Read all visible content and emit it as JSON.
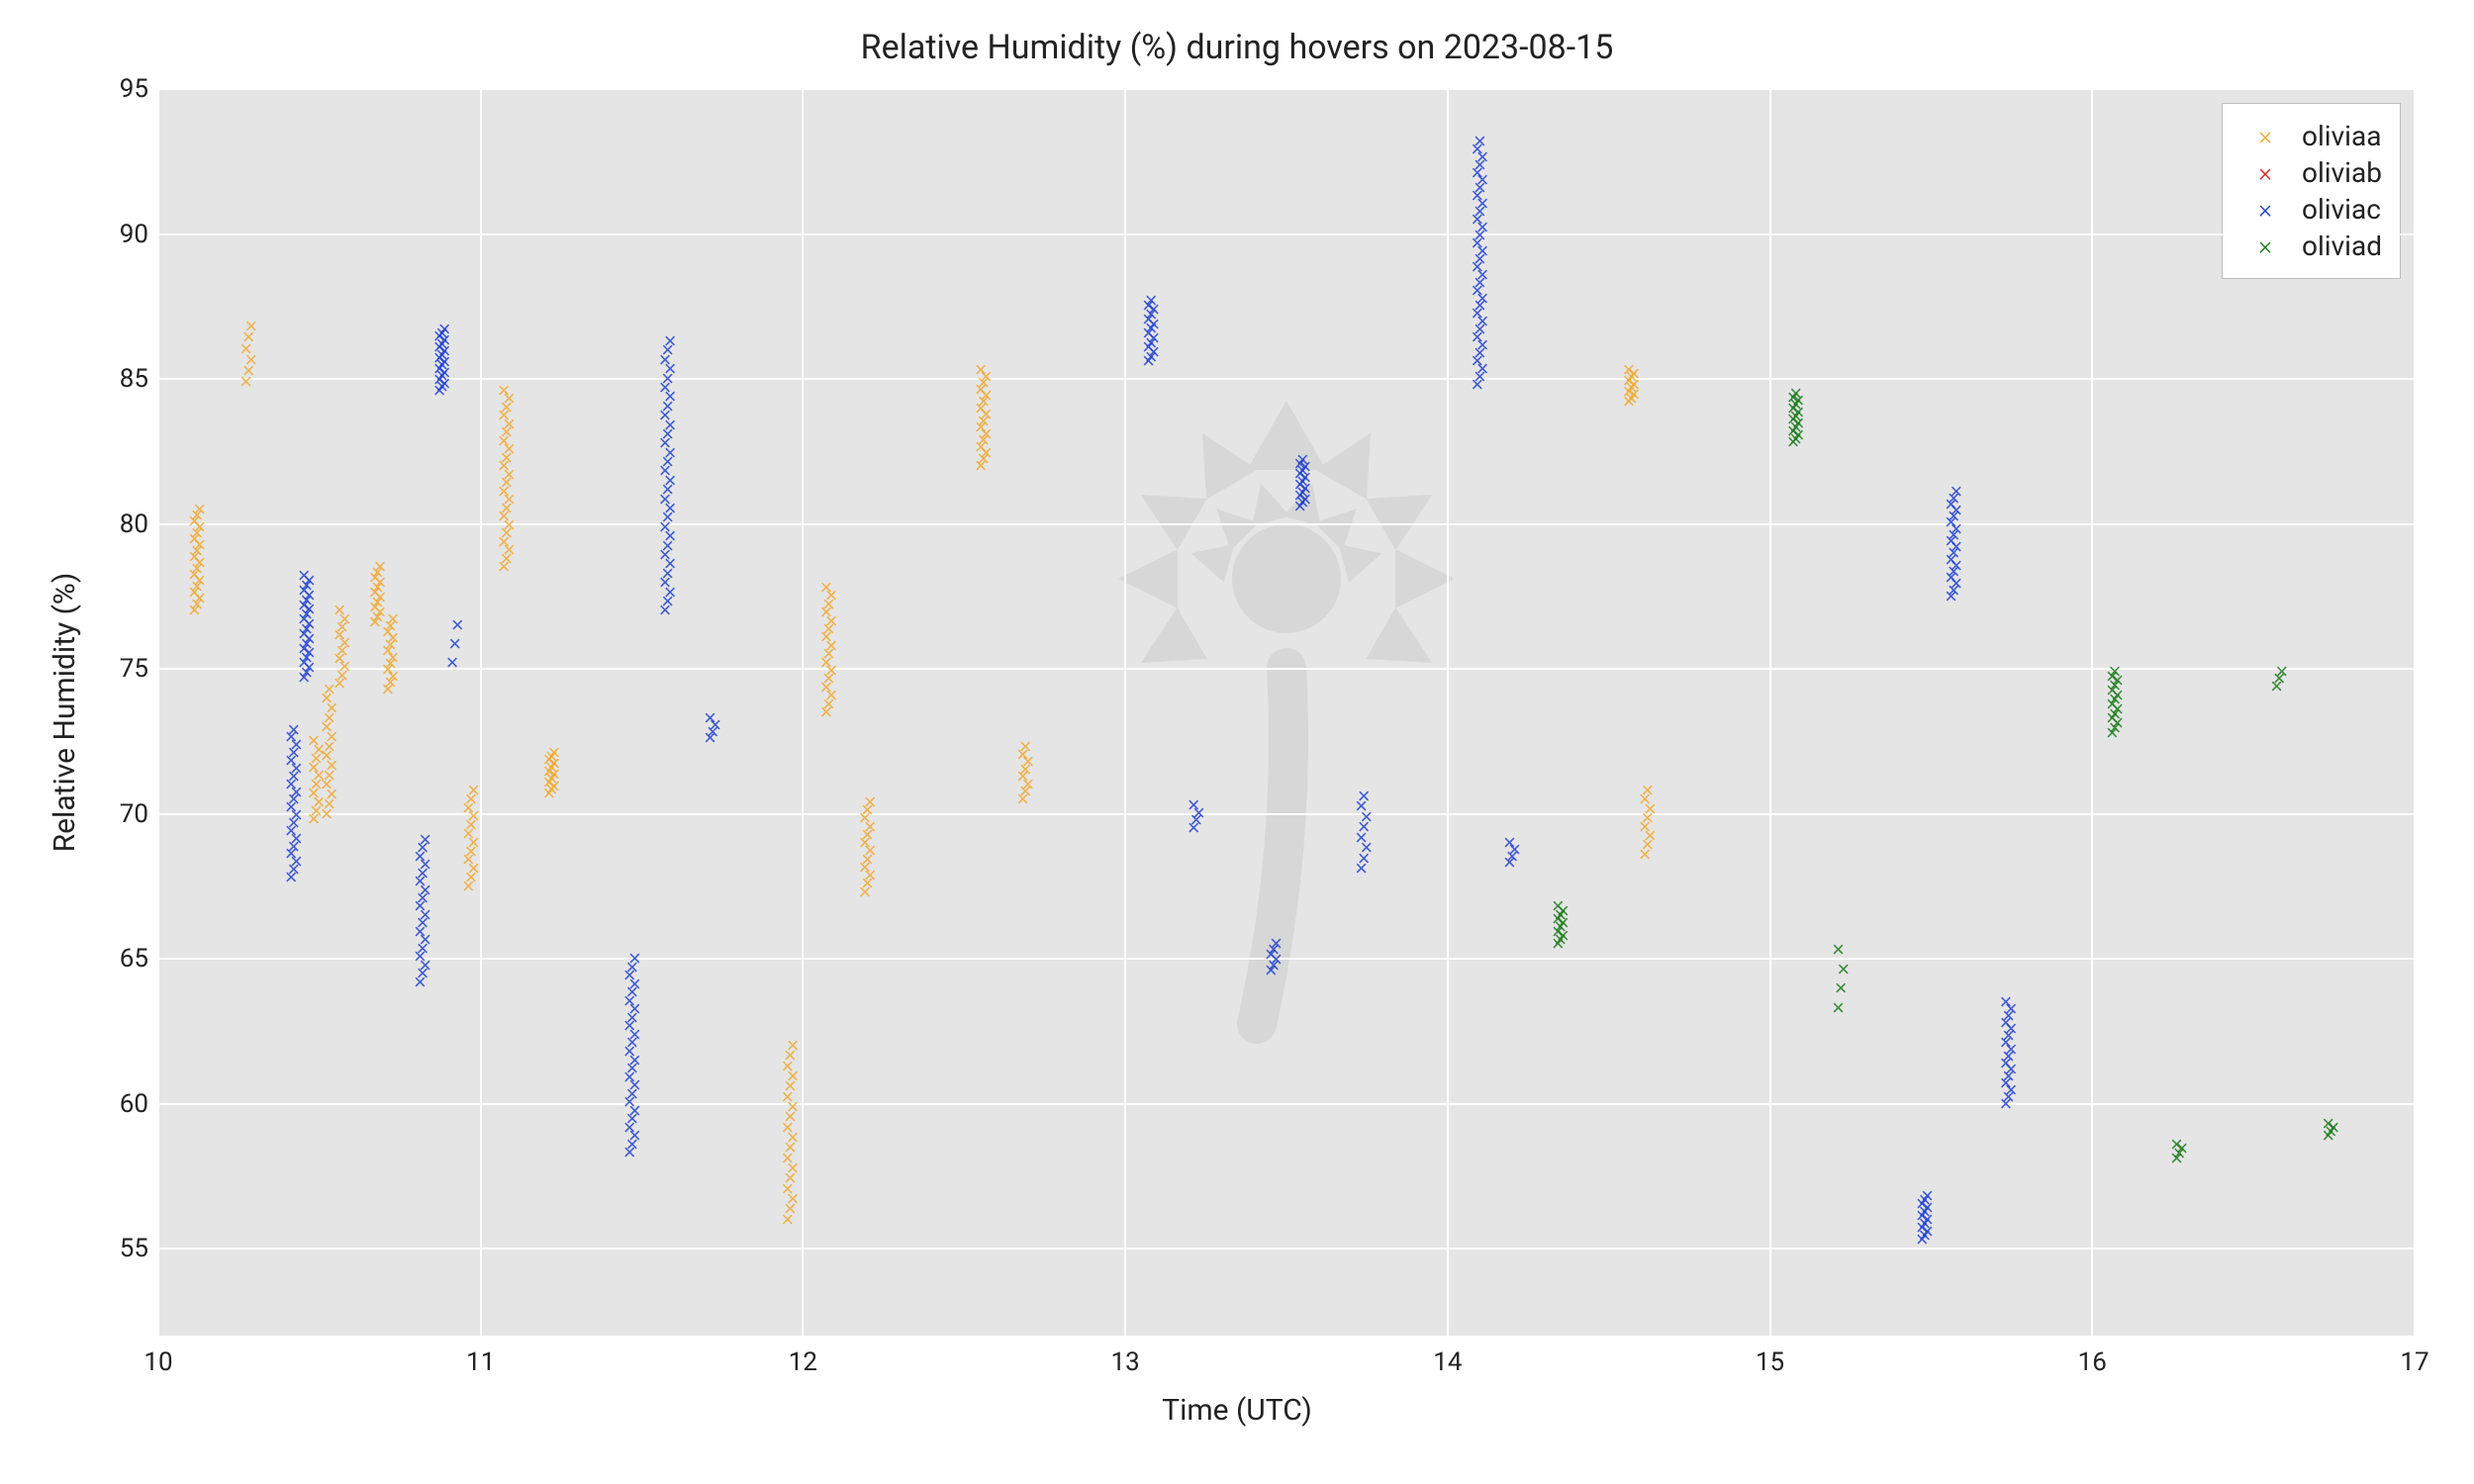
{
  "chart": {
    "type": "scatter",
    "title": "Relative Humidity (%) during hovers on 2023-08-15",
    "title_fontsize": 34,
    "xlabel": "Time (UTC)",
    "ylabel": "Relative Humidity (%)",
    "label_fontsize": 30,
    "tick_fontsize": 26,
    "background_color": "#ffffff",
    "plot_bg_color": "#e5e5e5",
    "grid_color": "#ffffff",
    "text_color": "#222222",
    "xlim": [
      10,
      17
    ],
    "ylim": [
      52,
      95
    ],
    "xticks": [
      10,
      11,
      12,
      13,
      14,
      15,
      16,
      17
    ],
    "yticks": [
      55,
      60,
      65,
      70,
      75,
      80,
      85,
      90,
      95
    ],
    "marker_symbol": "×",
    "marker_fontsize": 22,
    "legend": {
      "position": "upper-right",
      "items": [
        "oliviaa",
        "oliviab",
        "oliviac",
        "oliviad"
      ],
      "border_color": "#bcbcbc",
      "bg_color": "#ffffff",
      "fontsize": 28
    },
    "series_colors": {
      "oliviaa": "#f0a930",
      "oliviab": "#d62728",
      "oliviac": "#2040d0",
      "oliviad": "#1a7a1a"
    },
    "clusters": [
      {
        "series": "oliviaa",
        "x": 10.12,
        "ymin": 77.0,
        "ymax": 80.5,
        "n": 18
      },
      {
        "series": "oliviaa",
        "x": 10.28,
        "ymin": 84.9,
        "ymax": 86.8,
        "n": 6
      },
      {
        "series": "oliviac",
        "x": 10.42,
        "ymin": 67.8,
        "ymax": 72.9,
        "n": 20
      },
      {
        "series": "oliviac",
        "x": 10.46,
        "ymin": 74.7,
        "ymax": 78.2,
        "n": 22
      },
      {
        "series": "oliviaa",
        "x": 10.49,
        "ymin": 69.8,
        "ymax": 72.5,
        "n": 10
      },
      {
        "series": "oliviaa",
        "x": 10.53,
        "ymin": 70.0,
        "ymax": 74.3,
        "n": 14
      },
      {
        "series": "oliviaa",
        "x": 10.57,
        "ymin": 74.5,
        "ymax": 77.0,
        "n": 10
      },
      {
        "series": "oliviaa",
        "x": 10.68,
        "ymin": 76.6,
        "ymax": 78.5,
        "n": 12
      },
      {
        "series": "oliviaa",
        "x": 10.72,
        "ymin": 74.3,
        "ymax": 76.7,
        "n": 12
      },
      {
        "series": "oliviac",
        "x": 10.82,
        "ymin": 64.2,
        "ymax": 69.1,
        "n": 18
      },
      {
        "series": "oliviac",
        "x": 10.88,
        "ymin": 84.6,
        "ymax": 86.7,
        "n": 18
      },
      {
        "series": "oliviac",
        "x": 10.92,
        "ymin": 75.2,
        "ymax": 76.5,
        "n": 3
      },
      {
        "series": "oliviaa",
        "x": 10.97,
        "ymin": 67.5,
        "ymax": 70.8,
        "n": 12
      },
      {
        "series": "oliviaa",
        "x": 11.08,
        "ymin": 78.5,
        "ymax": 84.6,
        "n": 22
      },
      {
        "series": "oliviaa",
        "x": 11.22,
        "ymin": 70.7,
        "ymax": 72.1,
        "n": 12
      },
      {
        "series": "oliviac",
        "x": 11.47,
        "ymin": 58.3,
        "ymax": 65.0,
        "n": 24
      },
      {
        "series": "oliviac",
        "x": 11.58,
        "ymin": 77.0,
        "ymax": 86.3,
        "n": 30
      },
      {
        "series": "oliviac",
        "x": 11.72,
        "ymin": 72.6,
        "ymax": 73.3,
        "n": 4
      },
      {
        "series": "oliviaa",
        "x": 11.96,
        "ymin": 56.0,
        "ymax": 62.0,
        "n": 18
      },
      {
        "series": "oliviaa",
        "x": 12.08,
        "ymin": 73.5,
        "ymax": 77.8,
        "n": 16
      },
      {
        "series": "oliviaa",
        "x": 12.2,
        "ymin": 67.3,
        "ymax": 70.4,
        "n": 12
      },
      {
        "series": "oliviaa",
        "x": 12.56,
        "ymin": 82.0,
        "ymax": 85.3,
        "n": 16
      },
      {
        "series": "oliviaa",
        "x": 12.69,
        "ymin": 70.5,
        "ymax": 72.3,
        "n": 8
      },
      {
        "series": "oliviac",
        "x": 13.08,
        "ymin": 85.6,
        "ymax": 87.7,
        "n": 14
      },
      {
        "series": "oliviac",
        "x": 13.22,
        "ymin": 69.5,
        "ymax": 70.3,
        "n": 4
      },
      {
        "series": "oliviac",
        "x": 13.46,
        "ymin": 64.6,
        "ymax": 65.5,
        "n": 6
      },
      {
        "series": "oliviac",
        "x": 13.55,
        "ymin": 80.6,
        "ymax": 82.2,
        "n": 14
      },
      {
        "series": "oliviac",
        "x": 13.74,
        "ymin": 68.1,
        "ymax": 70.6,
        "n": 8
      },
      {
        "series": "oliviac",
        "x": 14.1,
        "ymin": 84.8,
        "ymax": 93.2,
        "n": 32
      },
      {
        "series": "oliviac",
        "x": 14.2,
        "ymin": 68.3,
        "ymax": 69.0,
        "n": 4
      },
      {
        "series": "oliviad",
        "x": 14.35,
        "ymin": 65.5,
        "ymax": 66.8,
        "n": 10
      },
      {
        "series": "oliviaa",
        "x": 14.57,
        "ymin": 84.2,
        "ymax": 85.3,
        "n": 10
      },
      {
        "series": "oliviaa",
        "x": 14.62,
        "ymin": 68.6,
        "ymax": 70.8,
        "n": 8
      },
      {
        "series": "oliviad",
        "x": 15.08,
        "ymin": 82.8,
        "ymax": 84.5,
        "n": 14
      },
      {
        "series": "oliviad",
        "x": 15.22,
        "ymin": 63.3,
        "ymax": 65.3,
        "n": 4
      },
      {
        "series": "oliviac",
        "x": 15.48,
        "ymin": 55.3,
        "ymax": 56.8,
        "n": 12
      },
      {
        "series": "oliviac",
        "x": 15.57,
        "ymin": 77.5,
        "ymax": 81.1,
        "n": 18
      },
      {
        "series": "oliviac",
        "x": 15.74,
        "ymin": 60.0,
        "ymax": 63.5,
        "n": 16
      },
      {
        "series": "oliviad",
        "x": 16.07,
        "ymin": 72.8,
        "ymax": 74.9,
        "n": 14
      },
      {
        "series": "oliviad",
        "x": 16.27,
        "ymin": 58.1,
        "ymax": 58.6,
        "n": 4
      },
      {
        "series": "oliviad",
        "x": 16.58,
        "ymin": 74.4,
        "ymax": 74.9,
        "n": 3
      },
      {
        "series": "oliviad",
        "x": 16.74,
        "ymin": 58.9,
        "ymax": 59.3,
        "n": 4
      }
    ]
  }
}
